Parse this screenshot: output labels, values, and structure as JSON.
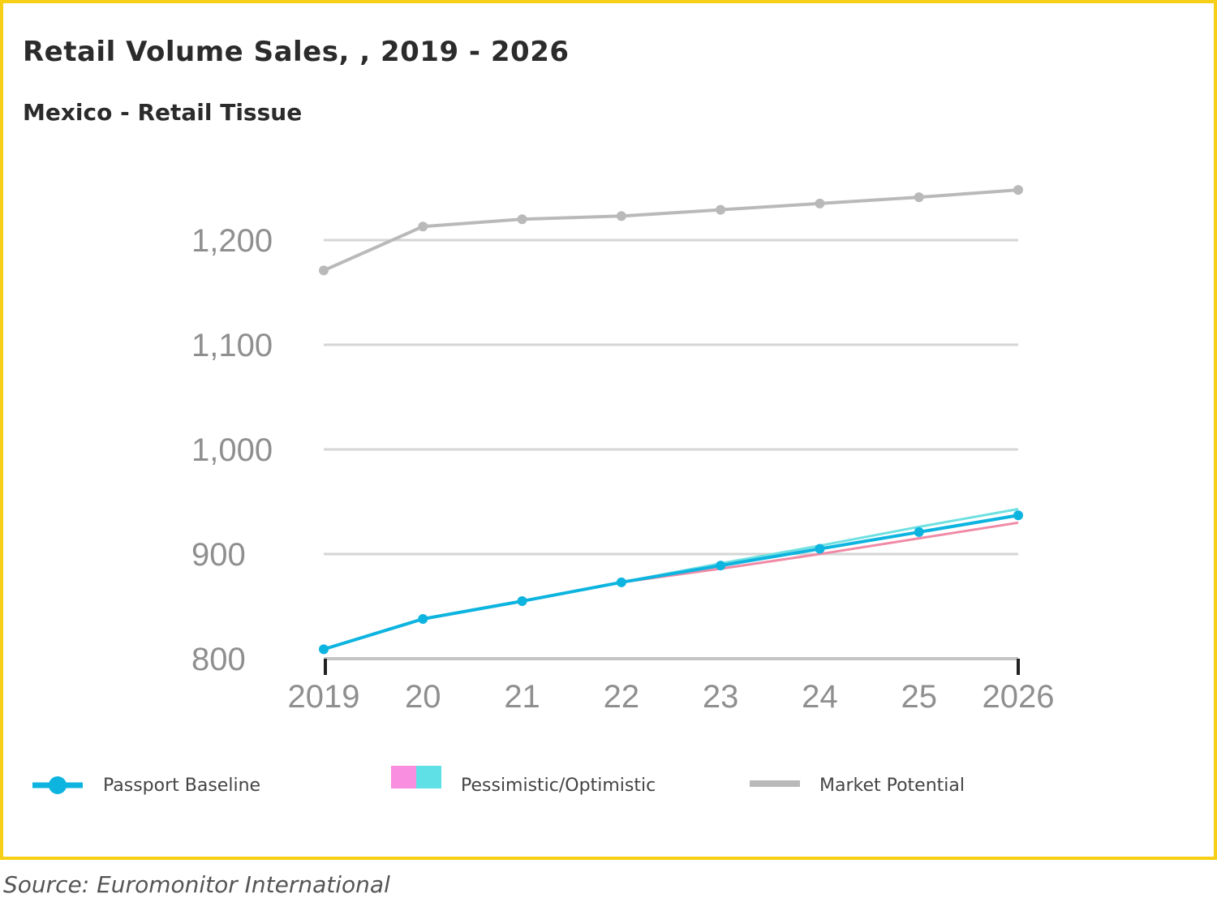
{
  "chart_data": {
    "type": "line",
    "title": "Retail Volume Sales, , 2019 - 2026",
    "subtitle": "Mexico - Retail Tissue",
    "x": [
      2019,
      2020,
      2021,
      2022,
      2023,
      2024,
      2025,
      2026
    ],
    "x_tick_labels": [
      "2019",
      "20",
      "21",
      "22",
      "23",
      "24",
      "25",
      "2026"
    ],
    "y_ticks": [
      800,
      900,
      1000,
      1100,
      1200
    ],
    "y_tick_labels": [
      "800",
      "900",
      "1,000",
      "1,100",
      "1,200"
    ],
    "ylim": [
      800,
      1200
    ],
    "grid": true,
    "legend_position": "bottom",
    "series": [
      {
        "name": "Market Potential",
        "color": "#b9b9b9",
        "markers": true,
        "values": [
          1171,
          1213,
          1220,
          1223,
          1229,
          1235,
          1241,
          1248
        ]
      },
      {
        "name": "Pessimistic",
        "color": "#f08aa6",
        "markers": false,
        "values": [
          null,
          null,
          null,
          873,
          886,
          900,
          915,
          930
        ]
      },
      {
        "name": "Optimistic",
        "color": "#6fe0e0",
        "markers": false,
        "values": [
          null,
          null,
          null,
          873,
          891,
          908,
          926,
          943
        ]
      },
      {
        "name": "Passport Baseline",
        "color": "#0db4df",
        "markers": true,
        "values": [
          809,
          838,
          855,
          873,
          889,
          905,
          921,
          937
        ]
      }
    ]
  },
  "legend": {
    "baseline_label": "Passport Baseline",
    "pess_opt_label": "Pessimistic/Optimistic",
    "market_label": "Market Potential",
    "pess_color": "#f98de0",
    "opt_color": "#5fdfe6"
  },
  "source": "Source: Euromonitor International"
}
